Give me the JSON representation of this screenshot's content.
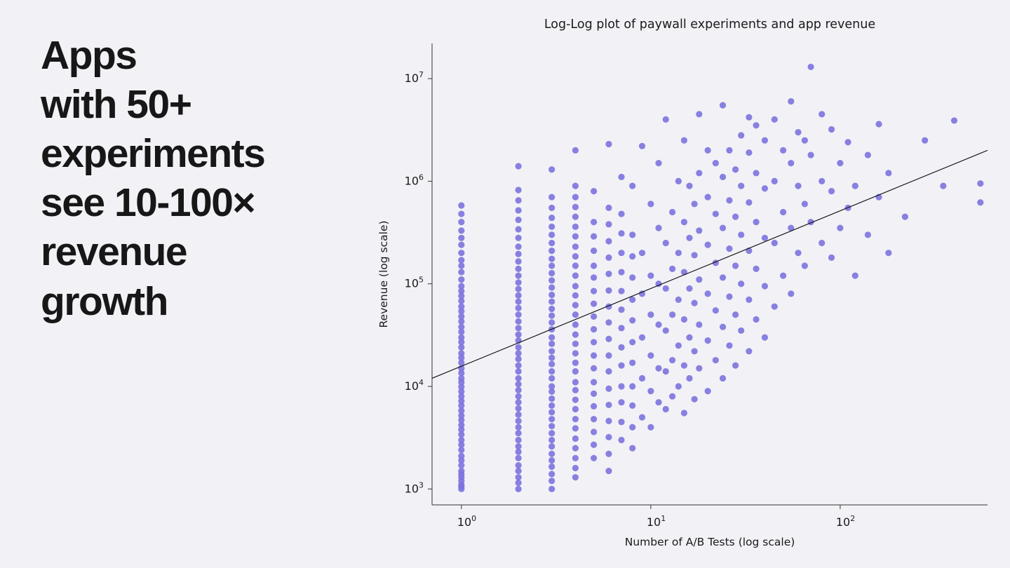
{
  "headline": {
    "lines": [
      "Apps",
      "with 50+",
      "experiments",
      "see 10-100×",
      "revenue",
      "growth"
    ]
  },
  "chart_data": {
    "type": "scatter",
    "title": "Log-Log plot of paywall experiments and app revenue",
    "xlabel": "Number of A/B Tests (log scale)",
    "ylabel": "Revenue (log scale)",
    "xlim": [
      0.7,
      600
    ],
    "ylim": [
      700,
      22000000
    ],
    "tick_base": "10",
    "x_tick_exponents": [
      0,
      1,
      2
    ],
    "y_tick_exponents": [
      3,
      4,
      5,
      6,
      7
    ],
    "grid": false,
    "point_color": "#7c73de",
    "point_opacity": 0.9,
    "line_color": "#111111",
    "trendline": {
      "x1": 0.7,
      "y1": 12000,
      "x2": 600,
      "y2": 2000000
    },
    "points": [
      [
        1,
        1000
      ],
      [
        1,
        1050
      ],
      [
        1,
        1100
      ],
      [
        1,
        1200
      ],
      [
        1,
        1300
      ],
      [
        1,
        1400
      ],
      [
        1,
        1500
      ],
      [
        1,
        1700
      ],
      [
        1,
        1900
      ],
      [
        1,
        2100
      ],
      [
        1,
        2400
      ],
      [
        1,
        2700
      ],
      [
        1,
        3000
      ],
      [
        1,
        3400
      ],
      [
        1,
        3800
      ],
      [
        1,
        4200
      ],
      [
        1,
        4700
      ],
      [
        1,
        5200
      ],
      [
        1,
        5800
      ],
      [
        1,
        6500
      ],
      [
        1,
        7200
      ],
      [
        1,
        8000
      ],
      [
        1,
        8900
      ],
      [
        1,
        9900
      ],
      [
        1,
        11000
      ],
      [
        1,
        12000
      ],
      [
        1,
        13500
      ],
      [
        1,
        15000
      ],
      [
        1,
        17000
      ],
      [
        1,
        19000
      ],
      [
        1,
        21000
      ],
      [
        1,
        24000
      ],
      [
        1,
        27000
      ],
      [
        1,
        30000
      ],
      [
        1,
        34000
      ],
      [
        1,
        38000
      ],
      [
        1,
        43000
      ],
      [
        1,
        48000
      ],
      [
        1,
        54000
      ],
      [
        1,
        60000
      ],
      [
        1,
        68000
      ],
      [
        1,
        76000
      ],
      [
        1,
        85000
      ],
      [
        1,
        95000
      ],
      [
        1,
        110000
      ],
      [
        1,
        130000
      ],
      [
        1,
        150000
      ],
      [
        1,
        170000
      ],
      [
        1,
        200000
      ],
      [
        1,
        240000
      ],
      [
        1,
        280000
      ],
      [
        1,
        330000
      ],
      [
        1,
        400000
      ],
      [
        1,
        480000
      ],
      [
        1,
        580000
      ],
      [
        2,
        1000
      ],
      [
        2,
        1150
      ],
      [
        2,
        1300
      ],
      [
        2,
        1500
      ],
      [
        2,
        1700
      ],
      [
        2,
        2000
      ],
      [
        2,
        2300
      ],
      [
        2,
        2600
      ],
      [
        2,
        3000
      ],
      [
        2,
        3500
      ],
      [
        2,
        4000
      ],
      [
        2,
        4600
      ],
      [
        2,
        5300
      ],
      [
        2,
        6100
      ],
      [
        2,
        7000
      ],
      [
        2,
        8000
      ],
      [
        2,
        9200
      ],
      [
        2,
        10500
      ],
      [
        2,
        12000
      ],
      [
        2,
        14000
      ],
      [
        2,
        16000
      ],
      [
        2,
        18500
      ],
      [
        2,
        21000
      ],
      [
        2,
        24000
      ],
      [
        2,
        28000
      ],
      [
        2,
        32000
      ],
      [
        2,
        37000
      ],
      [
        2,
        43000
      ],
      [
        2,
        50000
      ],
      [
        2,
        58000
      ],
      [
        2,
        67000
      ],
      [
        2,
        77000
      ],
      [
        2,
        89000
      ],
      [
        2,
        103000
      ],
      [
        2,
        120000
      ],
      [
        2,
        140000
      ],
      [
        2,
        165000
      ],
      [
        2,
        195000
      ],
      [
        2,
        230000
      ],
      [
        2,
        280000
      ],
      [
        2,
        340000
      ],
      [
        2,
        420000
      ],
      [
        2,
        520000
      ],
      [
        2,
        650000
      ],
      [
        2,
        820000
      ],
      [
        2,
        1400000
      ],
      [
        3,
        1000
      ],
      [
        3,
        1200
      ],
      [
        3,
        1400
      ],
      [
        3,
        1650
      ],
      [
        3,
        1900
      ],
      [
        3,
        2200
      ],
      [
        3,
        2600
      ],
      [
        3,
        3000
      ],
      [
        3,
        3500
      ],
      [
        3,
        4100
      ],
      [
        3,
        4800
      ],
      [
        3,
        5600
      ],
      [
        3,
        6500
      ],
      [
        3,
        7600
      ],
      [
        3,
        8900
      ],
      [
        3,
        10000
      ],
      [
        3,
        12000
      ],
      [
        3,
        14000
      ],
      [
        3,
        16500
      ],
      [
        3,
        19000
      ],
      [
        3,
        22000
      ],
      [
        3,
        26000
      ],
      [
        3,
        30000
      ],
      [
        3,
        36000
      ],
      [
        3,
        42000
      ],
      [
        3,
        49000
      ],
      [
        3,
        57000
      ],
      [
        3,
        67000
      ],
      [
        3,
        78000
      ],
      [
        3,
        92000
      ],
      [
        3,
        108000
      ],
      [
        3,
        127000
      ],
      [
        3,
        150000
      ],
      [
        3,
        175000
      ],
      [
        3,
        210000
      ],
      [
        3,
        250000
      ],
      [
        3,
        300000
      ],
      [
        3,
        360000
      ],
      [
        3,
        440000
      ],
      [
        3,
        550000
      ],
      [
        3,
        700000
      ],
      [
        3,
        1300000
      ],
      [
        4,
        1300
      ],
      [
        4,
        1600
      ],
      [
        4,
        2000
      ],
      [
        4,
        2500
      ],
      [
        4,
        3100
      ],
      [
        4,
        3900
      ],
      [
        4,
        4800
      ],
      [
        4,
        6000
      ],
      [
        4,
        7400
      ],
      [
        4,
        9200
      ],
      [
        4,
        11000
      ],
      [
        4,
        14000
      ],
      [
        4,
        17000
      ],
      [
        4,
        21000
      ],
      [
        4,
        26000
      ],
      [
        4,
        32000
      ],
      [
        4,
        40000
      ],
      [
        4,
        50000
      ],
      [
        4,
        62000
      ],
      [
        4,
        77000
      ],
      [
        4,
        95000
      ],
      [
        4,
        120000
      ],
      [
        4,
        150000
      ],
      [
        4,
        185000
      ],
      [
        4,
        230000
      ],
      [
        4,
        290000
      ],
      [
        4,
        360000
      ],
      [
        4,
        450000
      ],
      [
        4,
        560000
      ],
      [
        4,
        700000
      ],
      [
        4,
        900000
      ],
      [
        4,
        2000000
      ],
      [
        5,
        2000
      ],
      [
        5,
        2700
      ],
      [
        5,
        3600
      ],
      [
        5,
        4800
      ],
      [
        5,
        6400
      ],
      [
        5,
        8500
      ],
      [
        5,
        11000
      ],
      [
        5,
        15000
      ],
      [
        5,
        20000
      ],
      [
        5,
        27000
      ],
      [
        5,
        36000
      ],
      [
        5,
        48000
      ],
      [
        5,
        64000
      ],
      [
        5,
        85000
      ],
      [
        5,
        115000
      ],
      [
        5,
        150000
      ],
      [
        5,
        210000
      ],
      [
        5,
        290000
      ],
      [
        5,
        400000
      ],
      [
        5,
        800000
      ],
      [
        6,
        1500
      ],
      [
        6,
        2200
      ],
      [
        6,
        3200
      ],
      [
        6,
        4600
      ],
      [
        6,
        6600
      ],
      [
        6,
        9500
      ],
      [
        6,
        14000
      ],
      [
        6,
        20000
      ],
      [
        6,
        29000
      ],
      [
        6,
        42000
      ],
      [
        6,
        60000
      ],
      [
        6,
        86000
      ],
      [
        6,
        125000
      ],
      [
        6,
        180000
      ],
      [
        6,
        260000
      ],
      [
        6,
        380000
      ],
      [
        6,
        550000
      ],
      [
        6,
        2300000
      ],
      [
        7,
        3000
      ],
      [
        7,
        4500
      ],
      [
        7,
        7000
      ],
      [
        7,
        10000
      ],
      [
        7,
        16000
      ],
      [
        7,
        24000
      ],
      [
        7,
        37000
      ],
      [
        7,
        56000
      ],
      [
        7,
        85000
      ],
      [
        7,
        130000
      ],
      [
        7,
        200000
      ],
      [
        7,
        310000
      ],
      [
        7,
        480000
      ],
      [
        7,
        1100000
      ],
      [
        8,
        2500
      ],
      [
        8,
        4000
      ],
      [
        8,
        6500
      ],
      [
        8,
        10000
      ],
      [
        8,
        17000
      ],
      [
        8,
        27000
      ],
      [
        8,
        44000
      ],
      [
        8,
        70000
      ],
      [
        8,
        115000
      ],
      [
        8,
        185000
      ],
      [
        8,
        300000
      ],
      [
        8,
        900000
      ],
      [
        9,
        5000
      ],
      [
        9,
        12000
      ],
      [
        9,
        30000
      ],
      [
        9,
        80000
      ],
      [
        9,
        200000
      ],
      [
        9,
        2200000
      ],
      [
        10,
        4000
      ],
      [
        10,
        9000
      ],
      [
        10,
        20000
      ],
      [
        10,
        50000
      ],
      [
        10,
        120000
      ],
      [
        10,
        600000
      ],
      [
        11,
        7000
      ],
      [
        11,
        15000
      ],
      [
        11,
        40000
      ],
      [
        11,
        100000
      ],
      [
        11,
        350000
      ],
      [
        11,
        1500000
      ],
      [
        12,
        6000
      ],
      [
        12,
        14000
      ],
      [
        12,
        35000
      ],
      [
        12,
        90000
      ],
      [
        12,
        250000
      ],
      [
        12,
        4000000
      ],
      [
        13,
        8000
      ],
      [
        13,
        18000
      ],
      [
        13,
        50000
      ],
      [
        13,
        140000
      ],
      [
        13,
        500000
      ],
      [
        14,
        10000
      ],
      [
        14,
        25000
      ],
      [
        14,
        70000
      ],
      [
        14,
        200000
      ],
      [
        14,
        1000000
      ],
      [
        15,
        5500
      ],
      [
        15,
        16000
      ],
      [
        15,
        45000
      ],
      [
        15,
        130000
      ],
      [
        15,
        400000
      ],
      [
        15,
        2500000
      ],
      [
        16,
        12000
      ],
      [
        16,
        30000
      ],
      [
        16,
        90000
      ],
      [
        16,
        280000
      ],
      [
        16,
        900000
      ],
      [
        17,
        7500
      ],
      [
        17,
        22000
      ],
      [
        17,
        65000
      ],
      [
        17,
        190000
      ],
      [
        17,
        600000
      ],
      [
        18,
        15000
      ],
      [
        18,
        40000
      ],
      [
        18,
        110000
      ],
      [
        18,
        330000
      ],
      [
        18,
        1200000
      ],
      [
        18,
        4500000
      ],
      [
        20,
        9000
      ],
      [
        20,
        28000
      ],
      [
        20,
        80000
      ],
      [
        20,
        240000
      ],
      [
        20,
        700000
      ],
      [
        20,
        2000000
      ],
      [
        22,
        18000
      ],
      [
        22,
        55000
      ],
      [
        22,
        160000
      ],
      [
        22,
        480000
      ],
      [
        22,
        1500000
      ],
      [
        24,
        12000
      ],
      [
        24,
        38000
      ],
      [
        24,
        115000
      ],
      [
        24,
        350000
      ],
      [
        24,
        1100000
      ],
      [
        24,
        5500000
      ],
      [
        26,
        25000
      ],
      [
        26,
        75000
      ],
      [
        26,
        220000
      ],
      [
        26,
        650000
      ],
      [
        26,
        2000000
      ],
      [
        28,
        16000
      ],
      [
        28,
        50000
      ],
      [
        28,
        150000
      ],
      [
        28,
        450000
      ],
      [
        28,
        1300000
      ],
      [
        30,
        35000
      ],
      [
        30,
        100000
      ],
      [
        30,
        300000
      ],
      [
        30,
        900000
      ],
      [
        30,
        2800000
      ],
      [
        33,
        22000
      ],
      [
        33,
        70000
      ],
      [
        33,
        210000
      ],
      [
        33,
        620000
      ],
      [
        33,
        1900000
      ],
      [
        33,
        4200000
      ],
      [
        36,
        45000
      ],
      [
        36,
        140000
      ],
      [
        36,
        400000
      ],
      [
        36,
        1200000
      ],
      [
        36,
        3500000
      ],
      [
        40,
        30000
      ],
      [
        40,
        95000
      ],
      [
        40,
        280000
      ],
      [
        40,
        850000
      ],
      [
        40,
        2500000
      ],
      [
        45,
        60000
      ],
      [
        45,
        250000
      ],
      [
        45,
        1000000
      ],
      [
        45,
        4000000
      ],
      [
        50,
        120000
      ],
      [
        50,
        500000
      ],
      [
        50,
        2000000
      ],
      [
        55,
        80000
      ],
      [
        55,
        350000
      ],
      [
        55,
        1500000
      ],
      [
        55,
        6000000
      ],
      [
        60,
        200000
      ],
      [
        60,
        900000
      ],
      [
        60,
        3000000
      ],
      [
        65,
        150000
      ],
      [
        65,
        600000
      ],
      [
        65,
        2500000
      ],
      [
        70,
        400000
      ],
      [
        70,
        1800000
      ],
      [
        70,
        13000000
      ],
      [
        80,
        250000
      ],
      [
        80,
        1000000
      ],
      [
        80,
        4500000
      ],
      [
        90,
        180000
      ],
      [
        90,
        800000
      ],
      [
        90,
        3200000
      ],
      [
        100,
        350000
      ],
      [
        100,
        1500000
      ],
      [
        110,
        550000
      ],
      [
        110,
        2400000
      ],
      [
        120,
        120000
      ],
      [
        120,
        900000
      ],
      [
        140,
        300000
      ],
      [
        140,
        1800000
      ],
      [
        160,
        700000
      ],
      [
        160,
        3600000
      ],
      [
        180,
        200000
      ],
      [
        180,
        1200000
      ],
      [
        220,
        450000
      ],
      [
        280,
        2500000
      ],
      [
        350,
        900000
      ],
      [
        400,
        3900000
      ],
      [
        550,
        620000
      ],
      [
        550,
        950000
      ]
    ]
  }
}
